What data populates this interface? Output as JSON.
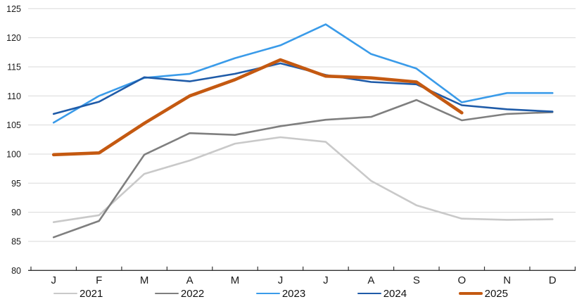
{
  "chart_data": {
    "type": "line",
    "title": "",
    "xlabel": "",
    "ylabel": "",
    "x_categories": [
      "J",
      "F",
      "M",
      "A",
      "M",
      "J",
      "J",
      "A",
      "S",
      "O",
      "N",
      "D"
    ],
    "ylim": [
      80,
      125
    ],
    "ytick_step": 5,
    "ytick_labels": [
      "80",
      "85",
      "90",
      "95",
      "100",
      "105",
      "110",
      "115",
      "120",
      "125"
    ],
    "grid": "horizontal",
    "legend_position": "bottom",
    "colors": {
      "gridline": "#D9D9D9",
      "axis": "#333333",
      "tick_label": "#1A1A1A",
      "background": "#FFFFFF"
    },
    "series": [
      {
        "name": "2021",
        "color": "#C9C9C9",
        "line_width": 2.6,
        "values": [
          88.3,
          89.5,
          96.6,
          98.9,
          101.8,
          102.9,
          102.1,
          95.4,
          91.2,
          88.9,
          88.7,
          88.8
        ]
      },
      {
        "name": "2022",
        "color": "#7F7F7F",
        "line_width": 2.6,
        "values": [
          85.7,
          88.5,
          99.9,
          103.6,
          103.3,
          104.8,
          105.9,
          106.4,
          109.3,
          105.8,
          106.9,
          107.2
        ]
      },
      {
        "name": "2023",
        "color": "#3A9BE9",
        "line_width": 2.6,
        "values": [
          105.4,
          110.0,
          113.1,
          113.8,
          116.5,
          118.7,
          122.3,
          117.2,
          114.7,
          108.9,
          110.5,
          110.5
        ]
      },
      {
        "name": "2024",
        "color": "#1F5BA8",
        "line_width": 2.6,
        "values": [
          106.9,
          109.0,
          113.2,
          112.5,
          113.8,
          115.6,
          113.6,
          112.4,
          112.0,
          108.4,
          107.7,
          107.3
        ]
      },
      {
        "name": "2025",
        "color": "#C45911",
        "line_width": 4.6,
        "values": [
          99.9,
          100.2,
          105.3,
          110.0,
          112.8,
          116.2,
          113.4,
          113.1,
          112.4,
          107.1
        ]
      }
    ]
  }
}
